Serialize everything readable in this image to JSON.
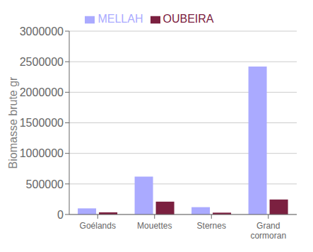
{
  "chart_data": {
    "type": "bar",
    "categories": [
      "Goélands",
      "Mouettes",
      "Sternes",
      "Grand\ncormoran"
    ],
    "series": [
      {
        "name": "MELLAH",
        "color": "#aaaaff",
        "values": [
          100000,
          620000,
          120000,
          2420000
        ]
      },
      {
        "name": "OUBEIRA",
        "color": "#7b2040",
        "values": [
          35000,
          210000,
          30000,
          245000
        ]
      }
    ],
    "ylabel": "Biomasse brute gr",
    "ylim": [
      0,
      3000000
    ],
    "yticks": [
      0,
      500000,
      1000000,
      1500000,
      2000000,
      2500000,
      3000000
    ],
    "grid": true,
    "legend": "top"
  }
}
